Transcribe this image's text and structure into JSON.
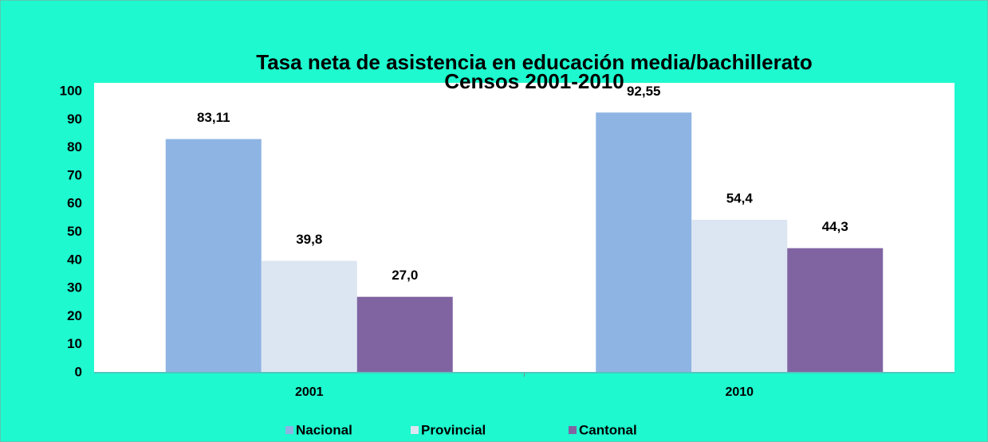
{
  "chart_data": {
    "type": "bar",
    "title": "Tasa neta de asistencia en educación media/bachillerato",
    "subtitle": "Censos 2001-2010",
    "categories": [
      "2001",
      "2010"
    ],
    "series": [
      {
        "name": "Nacional",
        "color": "#8eb4e3",
        "values": [
          83.11,
          92.55
        ],
        "value_labels": [
          "83,11",
          "92,55"
        ]
      },
      {
        "name": "Provincial",
        "color": "#dce6f2",
        "values": [
          39.8,
          54.4
        ],
        "value_labels": [
          "39,8",
          "54,4"
        ]
      },
      {
        "name": "Cantonal",
        "color": "#8064a2",
        "values": [
          27.0,
          44.3
        ],
        "value_labels": [
          "27,0",
          "44,3"
        ]
      }
    ],
    "ylim": [
      0,
      100
    ],
    "yticks": [
      0,
      10,
      20,
      30,
      40,
      50,
      60,
      70,
      80,
      90,
      100
    ],
    "legend": "bottom"
  }
}
